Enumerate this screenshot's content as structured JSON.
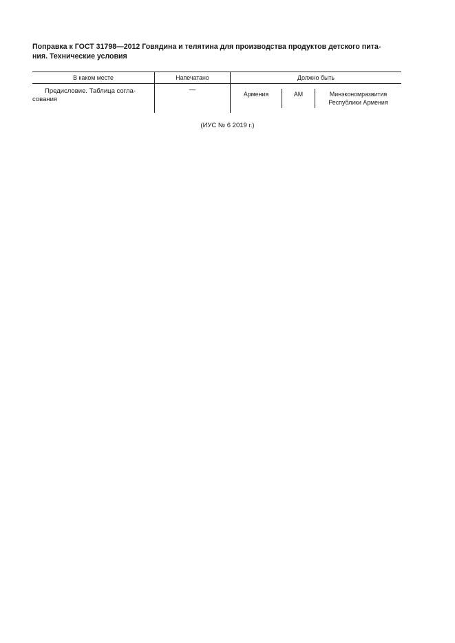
{
  "title": "Поправка к ГОСТ 31798—2012 Говядина и телятина для производства продуктов детского пита-ния. Технические условия",
  "title_line1": "Поправка к ГОСТ 31798—2012 Говядина и телятина для производства продуктов детского пита-",
  "title_line2": "ния. Технические условия",
  "table": {
    "headers": [
      "В каком месте",
      "Напечатано",
      "Должно быть"
    ],
    "row": {
      "where_line1": "Предисловие. Таблица согла-",
      "where_line2": "сования",
      "printed": "—",
      "should_be": [
        "Армения",
        "AM",
        "Минэкономразвития",
        "Республики Армения"
      ]
    }
  },
  "footer": "(ИУС № 6  2019 г.)"
}
